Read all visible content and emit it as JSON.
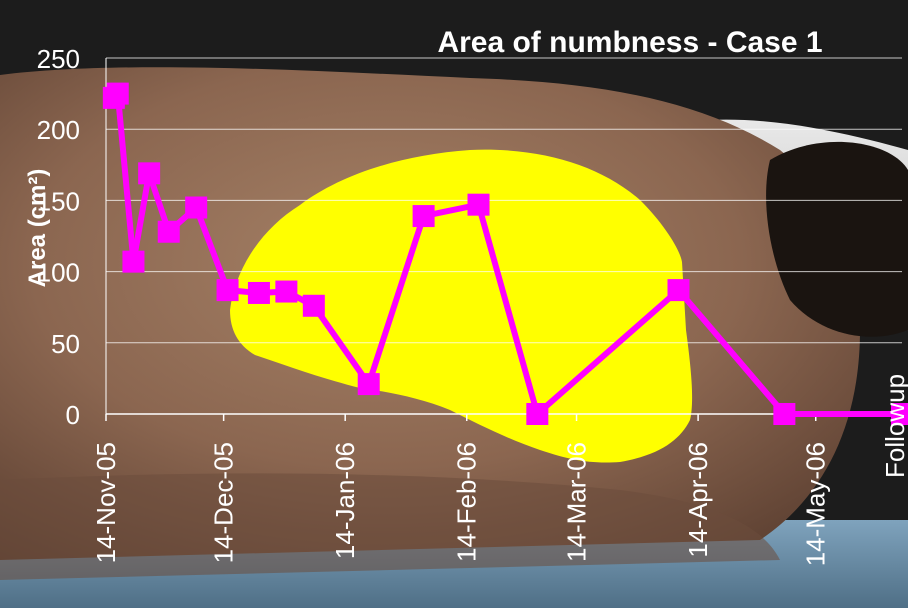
{
  "chart_data": {
    "type": "line",
    "title": "Area of numbness - Case 1",
    "ylabel": "Area (cm²)",
    "xlabel": "",
    "ylim": [
      0,
      250
    ],
    "xlim": [
      "2005-11-14",
      "2006-06-05"
    ],
    "y_ticks": [
      0,
      50,
      100,
      150,
      200,
      250
    ],
    "x_ticks": [
      {
        "date": "2005-11-14",
        "label": "14-Nov-05"
      },
      {
        "date": "2005-12-14",
        "label": "14-Dec-05"
      },
      {
        "date": "2006-01-14",
        "label": "14-Jan-06"
      },
      {
        "date": "2006-02-14",
        "label": "14-Feb-06"
      },
      {
        "date": "2006-03-14",
        "label": "14-Mar-06"
      },
      {
        "date": "2006-04-14",
        "label": "14-Apr-06"
      },
      {
        "date": "2006-05-14",
        "label": "14-May-06"
      }
    ],
    "annotation": "Followup",
    "grid": true,
    "series": [
      {
        "color": "#ff00ff",
        "points": [
          {
            "x": "2005-11-16",
            "y": 222
          },
          {
            "x": "2005-11-17",
            "y": 225
          },
          {
            "x": "2005-11-21",
            "y": 107
          },
          {
            "x": "2005-11-25",
            "y": 169
          },
          {
            "x": "2005-11-30",
            "y": 128
          },
          {
            "x": "2005-12-07",
            "y": 145
          },
          {
            "x": "2005-12-15",
            "y": 87
          },
          {
            "x": "2005-12-23",
            "y": 85
          },
          {
            "x": "2005-12-30",
            "y": 86
          },
          {
            "x": "2006-01-06",
            "y": 76
          },
          {
            "x": "2006-01-20",
            "y": 21
          },
          {
            "x": "2006-02-03",
            "y": 139
          },
          {
            "x": "2006-02-17",
            "y": 147
          },
          {
            "x": "2006-03-04",
            "y": 0
          },
          {
            "x": "2006-04-09",
            "y": 87
          },
          {
            "x": "2006-05-06",
            "y": 0
          },
          {
            "x": "2006-06-05",
            "y": 0
          }
        ]
      }
    ],
    "colors": {
      "photo_background": "#8a6a55",
      "numb_area": "#ffff00",
      "series": "#ff00ff",
      "grid": "#ffffff"
    }
  }
}
